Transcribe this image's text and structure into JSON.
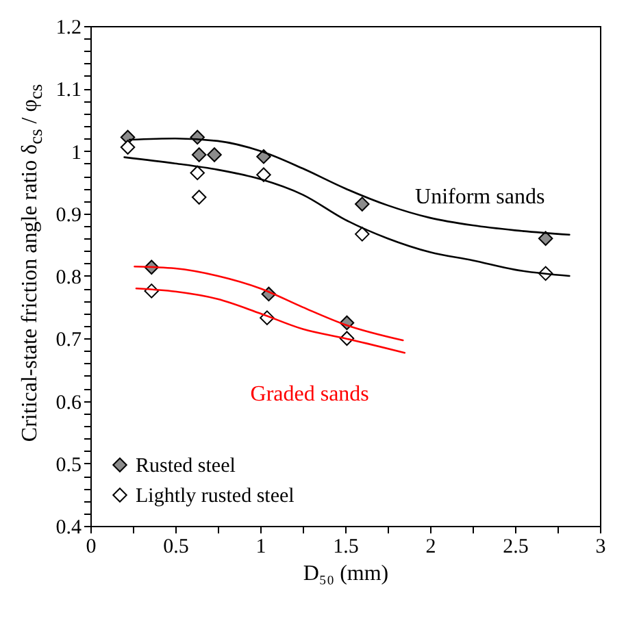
{
  "chart_data": {
    "type": "scatter",
    "xlabel": "D₅₀ (mm)",
    "ylabel": "Critical-state friction angle ratio δ$_{cs}$ / φ$_{cs}$",
    "xlim": [
      0,
      3
    ],
    "ylim": [
      0.4,
      1.2
    ],
    "xticks": [
      0,
      {
        "value": 0.25,
        "label": null
      },
      0.5,
      {
        "value": 0.75,
        "label": null
      },
      1,
      {
        "value": 1.25,
        "label": null
      },
      1.5,
      {
        "value": 1.75,
        "label": null
      },
      2,
      {
        "value": 2.25,
        "label": null
      },
      2.5,
      {
        "value": 2.75,
        "label": null
      },
      3
    ],
    "yticks": [
      0.4,
      {
        "value": 0.42,
        "label": null
      },
      {
        "value": 0.44,
        "label": null
      },
      {
        "value": 0.46,
        "label": null
      },
      {
        "value": 0.48,
        "label": null
      },
      0.5,
      {
        "value": 0.52,
        "label": null
      },
      {
        "value": 0.54,
        "label": null
      },
      {
        "value": 0.56,
        "label": null
      },
      {
        "value": 0.58,
        "label": null
      },
      0.6,
      {
        "value": 0.62,
        "label": null
      },
      {
        "value": 0.64,
        "label": null
      },
      {
        "value": 0.66,
        "label": null
      },
      {
        "value": 0.68,
        "label": null
      },
      0.7,
      {
        "value": 0.72,
        "label": null
      },
      {
        "value": 0.74,
        "label": null
      },
      {
        "value": 0.76,
        "label": null
      },
      {
        "value": 0.78,
        "label": null
      },
      0.8,
      {
        "value": 0.82,
        "label": null
      },
      {
        "value": 0.84,
        "label": null
      },
      {
        "value": 0.86,
        "label": null
      },
      {
        "value": 0.88,
        "label": null
      },
      0.9,
      {
        "value": 0.92,
        "label": null
      },
      {
        "value": 0.94,
        "label": null
      },
      {
        "value": 0.96,
        "label": null
      },
      {
        "value": 0.98,
        "label": null
      },
      1,
      {
        "value": 1.02,
        "label": null
      },
      {
        "value": 1.04,
        "label": null
      },
      {
        "value": 1.06,
        "label": null
      },
      {
        "value": 1.08,
        "label": null
      },
      1.1,
      {
        "value": 1.12,
        "label": null
      },
      {
        "value": 1.14,
        "label": null
      },
      {
        "value": 1.16,
        "label": null
      },
      {
        "value": 1.18,
        "label": null
      },
      1.2
    ],
    "grid": false,
    "legend": "bottom left",
    "marker": "diamond",
    "series": [
      {
        "name": "Rusted steel",
        "color": "#8c8c8c",
        "x": [
          0.22,
          0.63,
          0.64,
          0.73,
          1.02,
          1.6,
          2.68,
          0.36,
          1.05,
          1.51
        ],
        "values": [
          1.022,
          1.022,
          0.994,
          0.994,
          0.991,
          0.915,
          0.86,
          0.814,
          0.771,
          0.725
        ]
      },
      {
        "name": "Lightly rusted steel",
        "color": "#ffffff",
        "x": [
          0.22,
          0.63,
          0.64,
          1.02,
          1.6,
          2.68,
          0.36,
          1.04,
          1.51
        ],
        "values": [
          1.006,
          0.965,
          0.926,
          0.962,
          0.867,
          0.804,
          0.776,
          0.733,
          0.7
        ]
      },
      {
        "name": "Uniform sands",
        "type": "line",
        "color": "#000000",
        "marker": "none",
        "line_style": "solid",
        "x": [
          0.23,
          0.5,
          0.75,
          1.0,
          1.25,
          1.5,
          1.75,
          2.0,
          2.25,
          2.5,
          2.82,
          null,
          0.2,
          0.5,
          0.75,
          1.0,
          1.25,
          1.5,
          1.75,
          2.0,
          2.25,
          2.5,
          2.82
        ],
        "values": [
          1.018,
          1.02,
          1.016,
          1.0,
          0.972,
          0.94,
          0.913,
          0.893,
          0.881,
          0.873,
          0.866,
          null,
          0.99,
          0.98,
          0.97,
          0.955,
          0.93,
          0.89,
          0.86,
          0.838,
          0.825,
          0.81,
          0.8
        ]
      },
      {
        "name": "Graded sands",
        "type": "line",
        "color": "#ff0000",
        "marker": "none",
        "line_style": "solid",
        "x": [
          0.26,
          0.5,
          0.75,
          1.0,
          1.25,
          1.5,
          1.84,
          null,
          0.27,
          0.5,
          0.75,
          1.0,
          1.25,
          1.5,
          1.85
        ],
        "values": [
          0.815,
          0.812,
          0.8,
          0.78,
          0.75,
          0.722,
          0.697,
          null,
          0.78,
          0.775,
          0.763,
          0.74,
          0.715,
          0.7,
          0.677
        ]
      }
    ]
  }
}
